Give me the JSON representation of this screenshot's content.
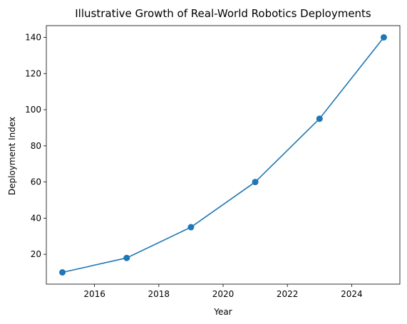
{
  "chart_data": {
    "type": "line",
    "title": "Illustrative Growth of Real-World Robotics Deployments",
    "xlabel": "Year",
    "ylabel": "Deployment Index",
    "xlim": [
      2014.5,
      2025.5
    ],
    "ylim": [
      3.5,
      146.5
    ],
    "xticks": [
      2016,
      2018,
      2020,
      2022,
      2024
    ],
    "yticks": [
      20,
      40,
      60,
      80,
      100,
      120,
      140
    ],
    "grid": false,
    "series": [
      {
        "color": "#1f77b4",
        "marker": "circle",
        "x": [
          2015,
          2017,
          2019,
          2021,
          2023,
          2025
        ],
        "y": [
          10,
          18,
          35,
          60,
          95,
          140
        ]
      }
    ]
  }
}
